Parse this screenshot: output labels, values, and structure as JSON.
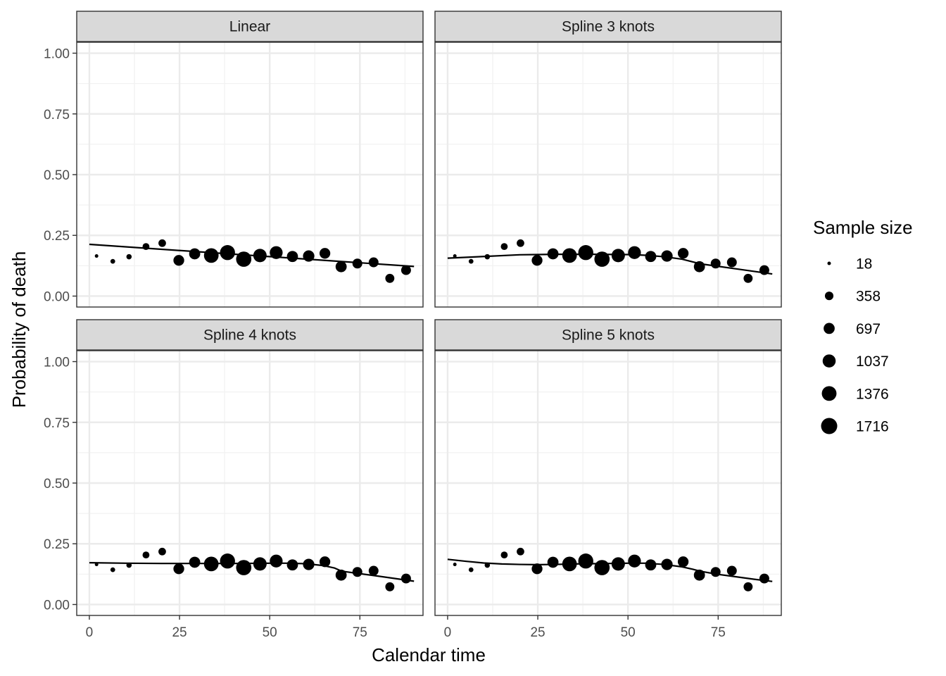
{
  "chart_data": {
    "type": "scatter",
    "layout": "facet-grid-2x2",
    "xlabel": "Calendar time",
    "ylabel": "Probability of death",
    "xlim": [
      -3.5,
      92.5
    ],
    "ylim": [
      -0.045,
      1.045
    ],
    "x_ticks": [
      0,
      25,
      50,
      75
    ],
    "x_tick_labels": [
      "0",
      "25",
      "50",
      "75"
    ],
    "y_ticks": [
      0,
      0.25,
      0.5,
      0.75,
      1.0
    ],
    "y_tick_labels": [
      "0.00",
      "0.25",
      "0.50",
      "0.75",
      "1.00"
    ],
    "grid": true,
    "legend": {
      "title": "Sample size",
      "placement": "right",
      "labels": [
        "18",
        "358",
        "697",
        "1037",
        "1376",
        "1716"
      ],
      "values": [
        18,
        358,
        697,
        1037,
        1376,
        1716
      ]
    },
    "points": {
      "x": [
        2,
        6.5,
        11,
        15.7,
        20.2,
        24.8,
        29.2,
        33.8,
        38.3,
        42.8,
        47.3,
        51.8,
        56.3,
        60.8,
        65.3,
        69.8,
        74.3,
        78.8,
        83.3,
        87.8
      ],
      "y": [
        0.165,
        0.143,
        0.162,
        0.204,
        0.218,
        0.147,
        0.174,
        0.167,
        0.179,
        0.152,
        0.167,
        0.179,
        0.163,
        0.165,
        0.176,
        0.121,
        0.134,
        0.139,
        0.073,
        0.107
      ],
      "size": [
        18,
        60,
        90,
        200,
        260,
        650,
        700,
        1350,
        1450,
        1500,
        1100,
        1000,
        700,
        750,
        650,
        700,
        520,
        520,
        420,
        520
      ]
    },
    "panels": [
      {
        "title": "Linear",
        "curve_x": [
          0,
          90
        ],
        "curve_y": [
          0.213,
          0.122
        ]
      },
      {
        "title": "Spline 3 knots",
        "curve_x": [
          0,
          10,
          20,
          25,
          30,
          40,
          50,
          55,
          60,
          65,
          70,
          80,
          90
        ],
        "curve_y": [
          0.156,
          0.163,
          0.17,
          0.171,
          0.172,
          0.172,
          0.171,
          0.168,
          0.162,
          0.152,
          0.133,
          0.112,
          0.091
        ]
      },
      {
        "title": "Spline 4 knots",
        "curve_x": [
          0,
          10,
          20,
          30,
          40,
          50,
          55,
          60,
          65,
          68,
          70,
          80,
          90
        ],
        "curve_y": [
          0.172,
          0.17,
          0.169,
          0.169,
          0.169,
          0.17,
          0.17,
          0.168,
          0.16,
          0.15,
          0.137,
          0.117,
          0.096
        ]
      },
      {
        "title": "Spline 5 knots",
        "curve_x": [
          0,
          5,
          10,
          15,
          20,
          25,
          30,
          35,
          40,
          45,
          50,
          55,
          60,
          65,
          68,
          70,
          75,
          80,
          85,
          90
        ],
        "curve_y": [
          0.186,
          0.178,
          0.171,
          0.167,
          0.165,
          0.164,
          0.165,
          0.167,
          0.168,
          0.169,
          0.17,
          0.17,
          0.165,
          0.155,
          0.145,
          0.137,
          0.124,
          0.114,
          0.104,
          0.095
        ]
      }
    ]
  }
}
